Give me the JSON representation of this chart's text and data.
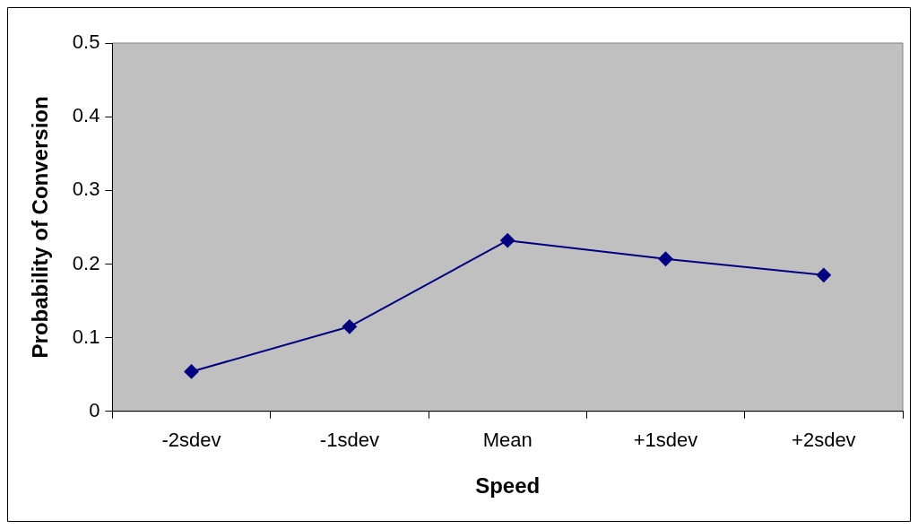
{
  "chart_data": {
    "type": "line",
    "xlabel": "Speed",
    "ylabel": "Probability of Conversion",
    "categories": [
      "-2sdev",
      "-1sdev",
      "Mean",
      "+1sdev",
      "+2sdev"
    ],
    "series": [
      {
        "color": "#000080",
        "values": [
          0.054,
          0.115,
          0.232,
          0.207,
          0.185
        ]
      }
    ],
    "ylim": [
      0,
      0.5
    ],
    "yticks": [
      0,
      0.1,
      0.2,
      0.3,
      0.4,
      0.5
    ],
    "grid": false,
    "legend": false,
    "marker": "diamond",
    "line_style": "solid"
  }
}
